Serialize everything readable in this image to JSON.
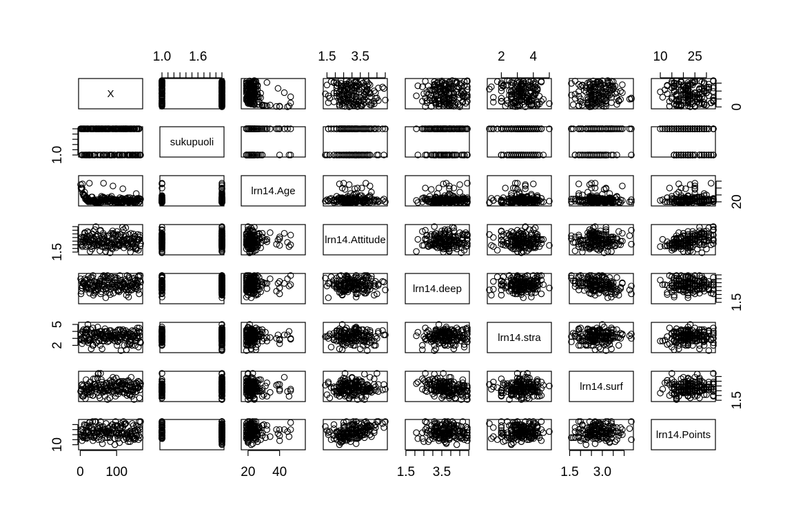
{
  "chart_data": {
    "type": "scatter",
    "subtype": "scatterplot-matrix",
    "title": "",
    "n_points": 166,
    "variables": [
      {
        "name": "X",
        "range": [
          1,
          166
        ],
        "ticks": [
          0,
          100
        ],
        "tick_labels": [
          "0",
          "100"
        ],
        "axis_side": "bottom",
        "right_ticks": [
          0,
          50,
          100,
          150
        ]
      },
      {
        "name": "sukupuoli",
        "range": [
          1,
          2
        ],
        "ticks": [
          1.0,
          1.1,
          1.2,
          1.3,
          1.4,
          1.5,
          1.6,
          1.7,
          1.8,
          1.9,
          2.0
        ],
        "tick_labels": [
          "1.0",
          "",
          "",
          "1.6",
          "",
          "",
          ""
        ],
        "axis_side": "top",
        "left_ticks": [
          1.0,
          1.2,
          1.4,
          1.6,
          1.8,
          2.0
        ],
        "left_tick_labels": [
          "1.0"
        ]
      },
      {
        "name": "lrn14.Age",
        "range": [
          17,
          55
        ],
        "ticks": [
          20,
          40
        ],
        "tick_labels": [
          "20",
          "40"
        ],
        "axis_side": "bottom",
        "right_ticks": [
          20,
          30,
          40,
          50
        ],
        "right_tick_labels": [
          "20"
        ]
      },
      {
        "name": "lrn14.Attitude",
        "range": [
          1.4,
          5.0
        ],
        "ticks": [
          1.5,
          2.0,
          2.5,
          3.0,
          3.5,
          4.0,
          4.5,
          5.0
        ],
        "tick_labels": [
          "1.5",
          "3.5"
        ],
        "axis_side": "top",
        "left_ticks": [
          1.5,
          2.0,
          2.5,
          3.0,
          3.5,
          4.0,
          4.5,
          5.0
        ],
        "left_tick_labels": [
          "1.5"
        ]
      },
      {
        "name": "lrn14.deep",
        "range": [
          1.58,
          4.92
        ],
        "ticks": [
          1.5,
          2.0,
          2.5,
          3.0,
          3.5,
          4.0,
          4.5,
          5.0
        ],
        "tick_labels": [
          "1.5",
          "3.5"
        ],
        "axis_side": "bottom",
        "right_ticks": [
          1.5,
          2.0,
          2.5,
          3.0,
          3.5,
          4.0,
          4.5,
          5.0
        ],
        "right_tick_labels": [
          "1.5"
        ]
      },
      {
        "name": "lrn14.stra",
        "range": [
          1.25,
          5.0
        ],
        "ticks": [
          2,
          3,
          4,
          5
        ],
        "tick_labels": [
          "2",
          "4"
        ],
        "axis_side": "top",
        "left_ticks": [
          2,
          3,
          4,
          5
        ],
        "left_tick_labels": [
          "2",
          "5"
        ]
      },
      {
        "name": "lrn14.surf",
        "range": [
          1.58,
          4.33
        ],
        "ticks": [
          1.5,
          2.0,
          2.5,
          3.0,
          3.5,
          4.0
        ],
        "tick_labels": [
          "1.5",
          "3.0"
        ],
        "axis_side": "bottom",
        "right_ticks": [
          1.5,
          2.0,
          2.5,
          3.0,
          3.5,
          4.0
        ],
        "right_tick_labels": [
          "1.5"
        ]
      },
      {
        "name": "lrn14.Points",
        "range": [
          7,
          33
        ],
        "ticks": [
          10,
          15,
          20,
          25,
          30
        ],
        "tick_labels": [
          "10",
          "25"
        ],
        "axis_side": "top",
        "left_ticks": [
          10,
          15,
          20,
          25,
          30
        ],
        "left_tick_labels": [
          "10"
        ]
      }
    ]
  }
}
